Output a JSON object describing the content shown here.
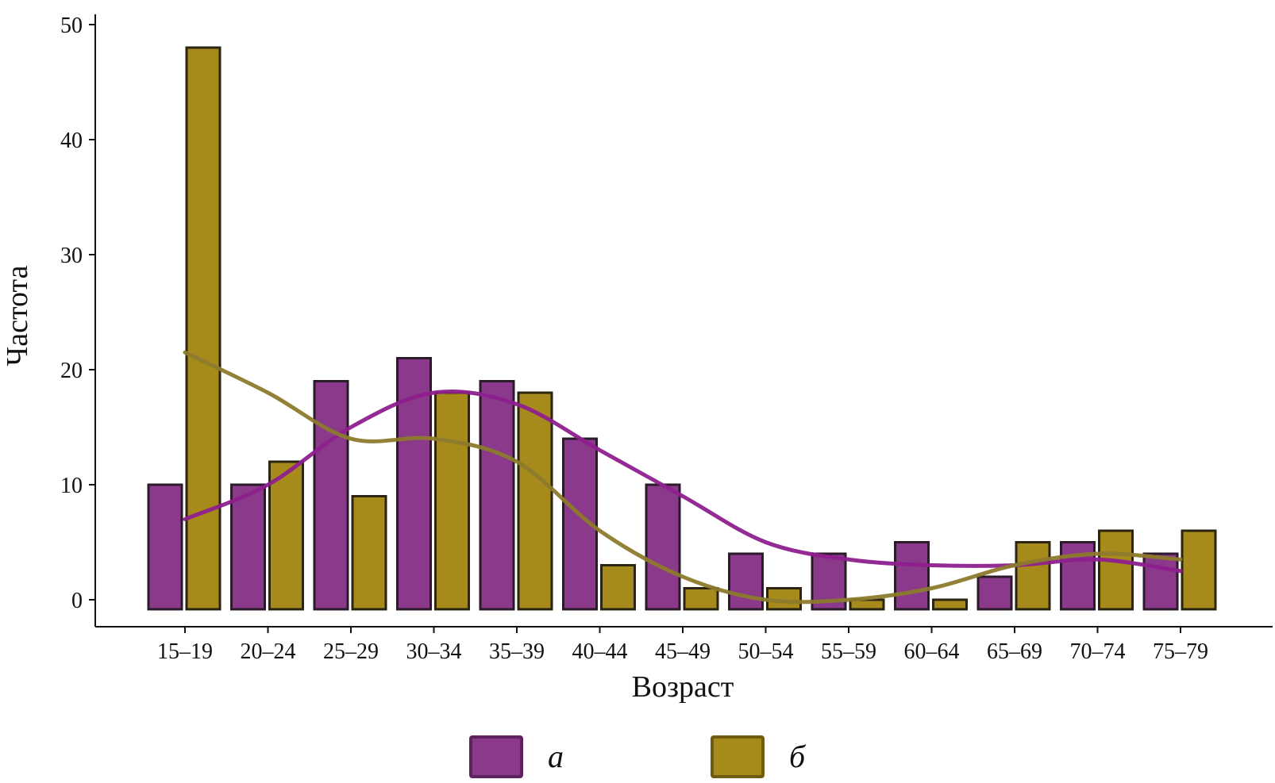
{
  "chart_data": {
    "type": "bar",
    "categories": [
      "15–19",
      "20–24",
      "25–29",
      "30–34",
      "35–39",
      "40–44",
      "45–49",
      "50–54",
      "55–59",
      "60–64",
      "65–69",
      "70–74",
      "75–79"
    ],
    "xlabel": "Возраст",
    "ylabel": "Частота",
    "ylim": [
      0,
      50
    ],
    "yticks": [
      "0",
      "10",
      "20",
      "30",
      "40",
      "50"
    ],
    "grid": false,
    "legend_position": "bottom",
    "series": [
      {
        "name": "а",
        "color": "#8B3A8B",
        "values": [
          10,
          10,
          19,
          21,
          19,
          14,
          10,
          4,
          4,
          5,
          2,
          5,
          4
        ],
        "curve": [
          7,
          10,
          15,
          18,
          17,
          13,
          9,
          5,
          3.5,
          3,
          3,
          3.5,
          2.5
        ]
      },
      {
        "name": "б",
        "color": "#A68A1C",
        "values": [
          48,
          12,
          9,
          18,
          18,
          3,
          1,
          1,
          0,
          0,
          5,
          6,
          6
        ],
        "curve": [
          21.5,
          18,
          14,
          14,
          12,
          6,
          2,
          0,
          0,
          1,
          3,
          4,
          3.5
        ]
      }
    ]
  }
}
